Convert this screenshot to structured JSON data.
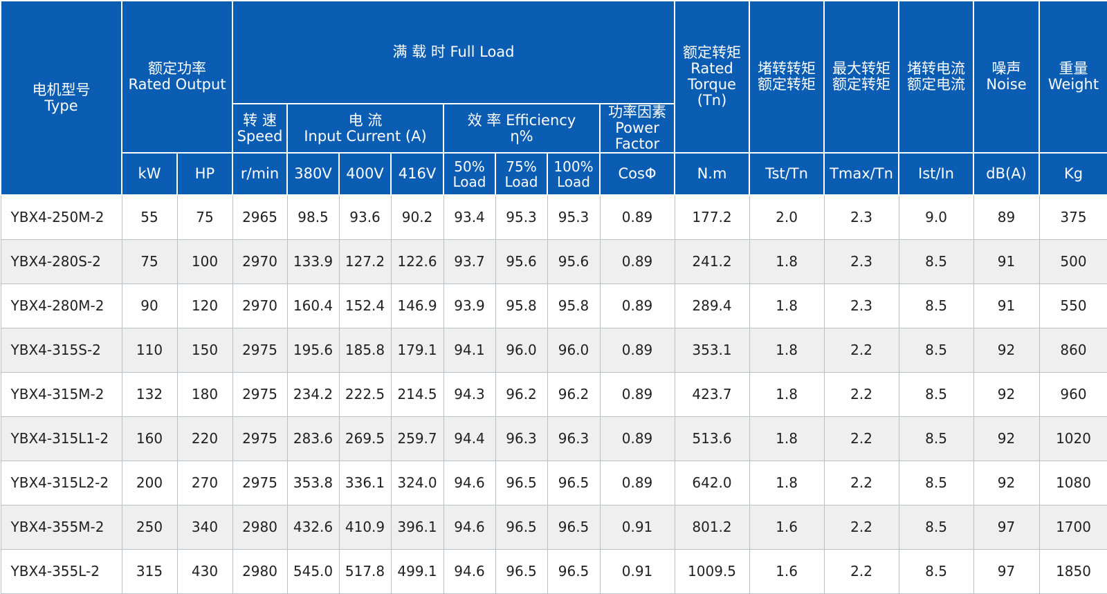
{
  "header": {
    "type": [
      "电机型号",
      "Type"
    ],
    "rated_output": [
      "额定功率",
      "Rated Output"
    ],
    "full_load": "满 载 时  Full Load",
    "speed": [
      "转 速",
      "Speed"
    ],
    "current": [
      "电 流",
      "Input Current (A)"
    ],
    "efficiency": [
      "效 率 Efficiency",
      "η%"
    ],
    "power_factor": [
      "功率因素",
      "Power",
      "Factor"
    ],
    "rated_torque": [
      "额定转矩",
      "Rated",
      "Torque",
      "(Tn)"
    ],
    "locked_torque": [
      "堵转转矩",
      "额定转矩"
    ],
    "max_torque": [
      "最大转矩",
      "额定转矩"
    ],
    "locked_current": [
      "堵转电流",
      "额定电流"
    ],
    "noise": [
      "噪声",
      "Noise"
    ],
    "weight": [
      "重量",
      "Weight"
    ]
  },
  "units": {
    "kw": "kW",
    "hp": "HP",
    "rpm": "r/min",
    "v380": "380V",
    "v400": "400V",
    "v416": "416V",
    "eff50": [
      "50%",
      "Load"
    ],
    "eff75": [
      "75%",
      "Load"
    ],
    "eff100": [
      "100%",
      "Load"
    ],
    "cos": "CosΦ",
    "nm": "N.m",
    "tst": "Tst/Tn",
    "tmax": "Tmax/Tn",
    "ist": "Ist/In",
    "db": "dB(A)",
    "kg": "Kg"
  },
  "rows": [
    [
      "YBX4-250M-2",
      "55",
      "75",
      "2965",
      "98.5",
      "93.6",
      "90.2",
      "93.4",
      "95.3",
      "95.3",
      "0.89",
      "177.2",
      "2.0",
      "2.3",
      "9.0",
      "89",
      "375"
    ],
    [
      "YBX4-280S-2",
      "75",
      "100",
      "2970",
      "133.9",
      "127.2",
      "122.6",
      "93.7",
      "95.6",
      "95.6",
      "0.89",
      "241.2",
      "1.8",
      "2.3",
      "8.5",
      "91",
      "500"
    ],
    [
      "YBX4-280M-2",
      "90",
      "120",
      "2970",
      "160.4",
      "152.4",
      "146.9",
      "93.9",
      "95.8",
      "95.8",
      "0.89",
      "289.4",
      "1.8",
      "2.3",
      "8.5",
      "91",
      "550"
    ],
    [
      "YBX4-315S-2",
      "110",
      "150",
      "2975",
      "195.6",
      "185.8",
      "179.1",
      "94.1",
      "96.0",
      "96.0",
      "0.89",
      "353.1",
      "1.8",
      "2.2",
      "8.5",
      "92",
      "860"
    ],
    [
      "YBX4-315M-2",
      "132",
      "180",
      "2975",
      "234.2",
      "222.5",
      "214.5",
      "94.3",
      "96.2",
      "96.2",
      "0.89",
      "423.7",
      "1.8",
      "2.2",
      "8.5",
      "92",
      "960"
    ],
    [
      "YBX4-315L1-2",
      "160",
      "220",
      "2975",
      "283.6",
      "269.5",
      "259.7",
      "94.4",
      "96.3",
      "96.3",
      "0.89",
      "513.6",
      "1.8",
      "2.2",
      "8.5",
      "92",
      "1020"
    ],
    [
      "YBX4-315L2-2",
      "200",
      "270",
      "2975",
      "353.8",
      "336.1",
      "324.0",
      "94.6",
      "96.5",
      "96.5",
      "0.89",
      "642.0",
      "1.8",
      "2.2",
      "8.5",
      "92",
      "1080"
    ],
    [
      "YBX4-355M-2",
      "250",
      "340",
      "2980",
      "432.6",
      "410.9",
      "396.1",
      "94.6",
      "96.5",
      "96.5",
      "0.91",
      "801.2",
      "1.6",
      "2.2",
      "8.5",
      "97",
      "1700"
    ],
    [
      "YBX4-355L-2",
      "315",
      "430",
      "2980",
      "545.0",
      "517.8",
      "499.1",
      "94.6",
      "96.5",
      "96.5",
      "0.91",
      "1009.5",
      "1.6",
      "2.2",
      "8.5",
      "97",
      "1850"
    ]
  ],
  "colors": {
    "header_bg": "#0a5db3",
    "header_text": "#ffffff",
    "row_alt_bg": "#efefef",
    "grid_line": "#b9bfc6"
  }
}
